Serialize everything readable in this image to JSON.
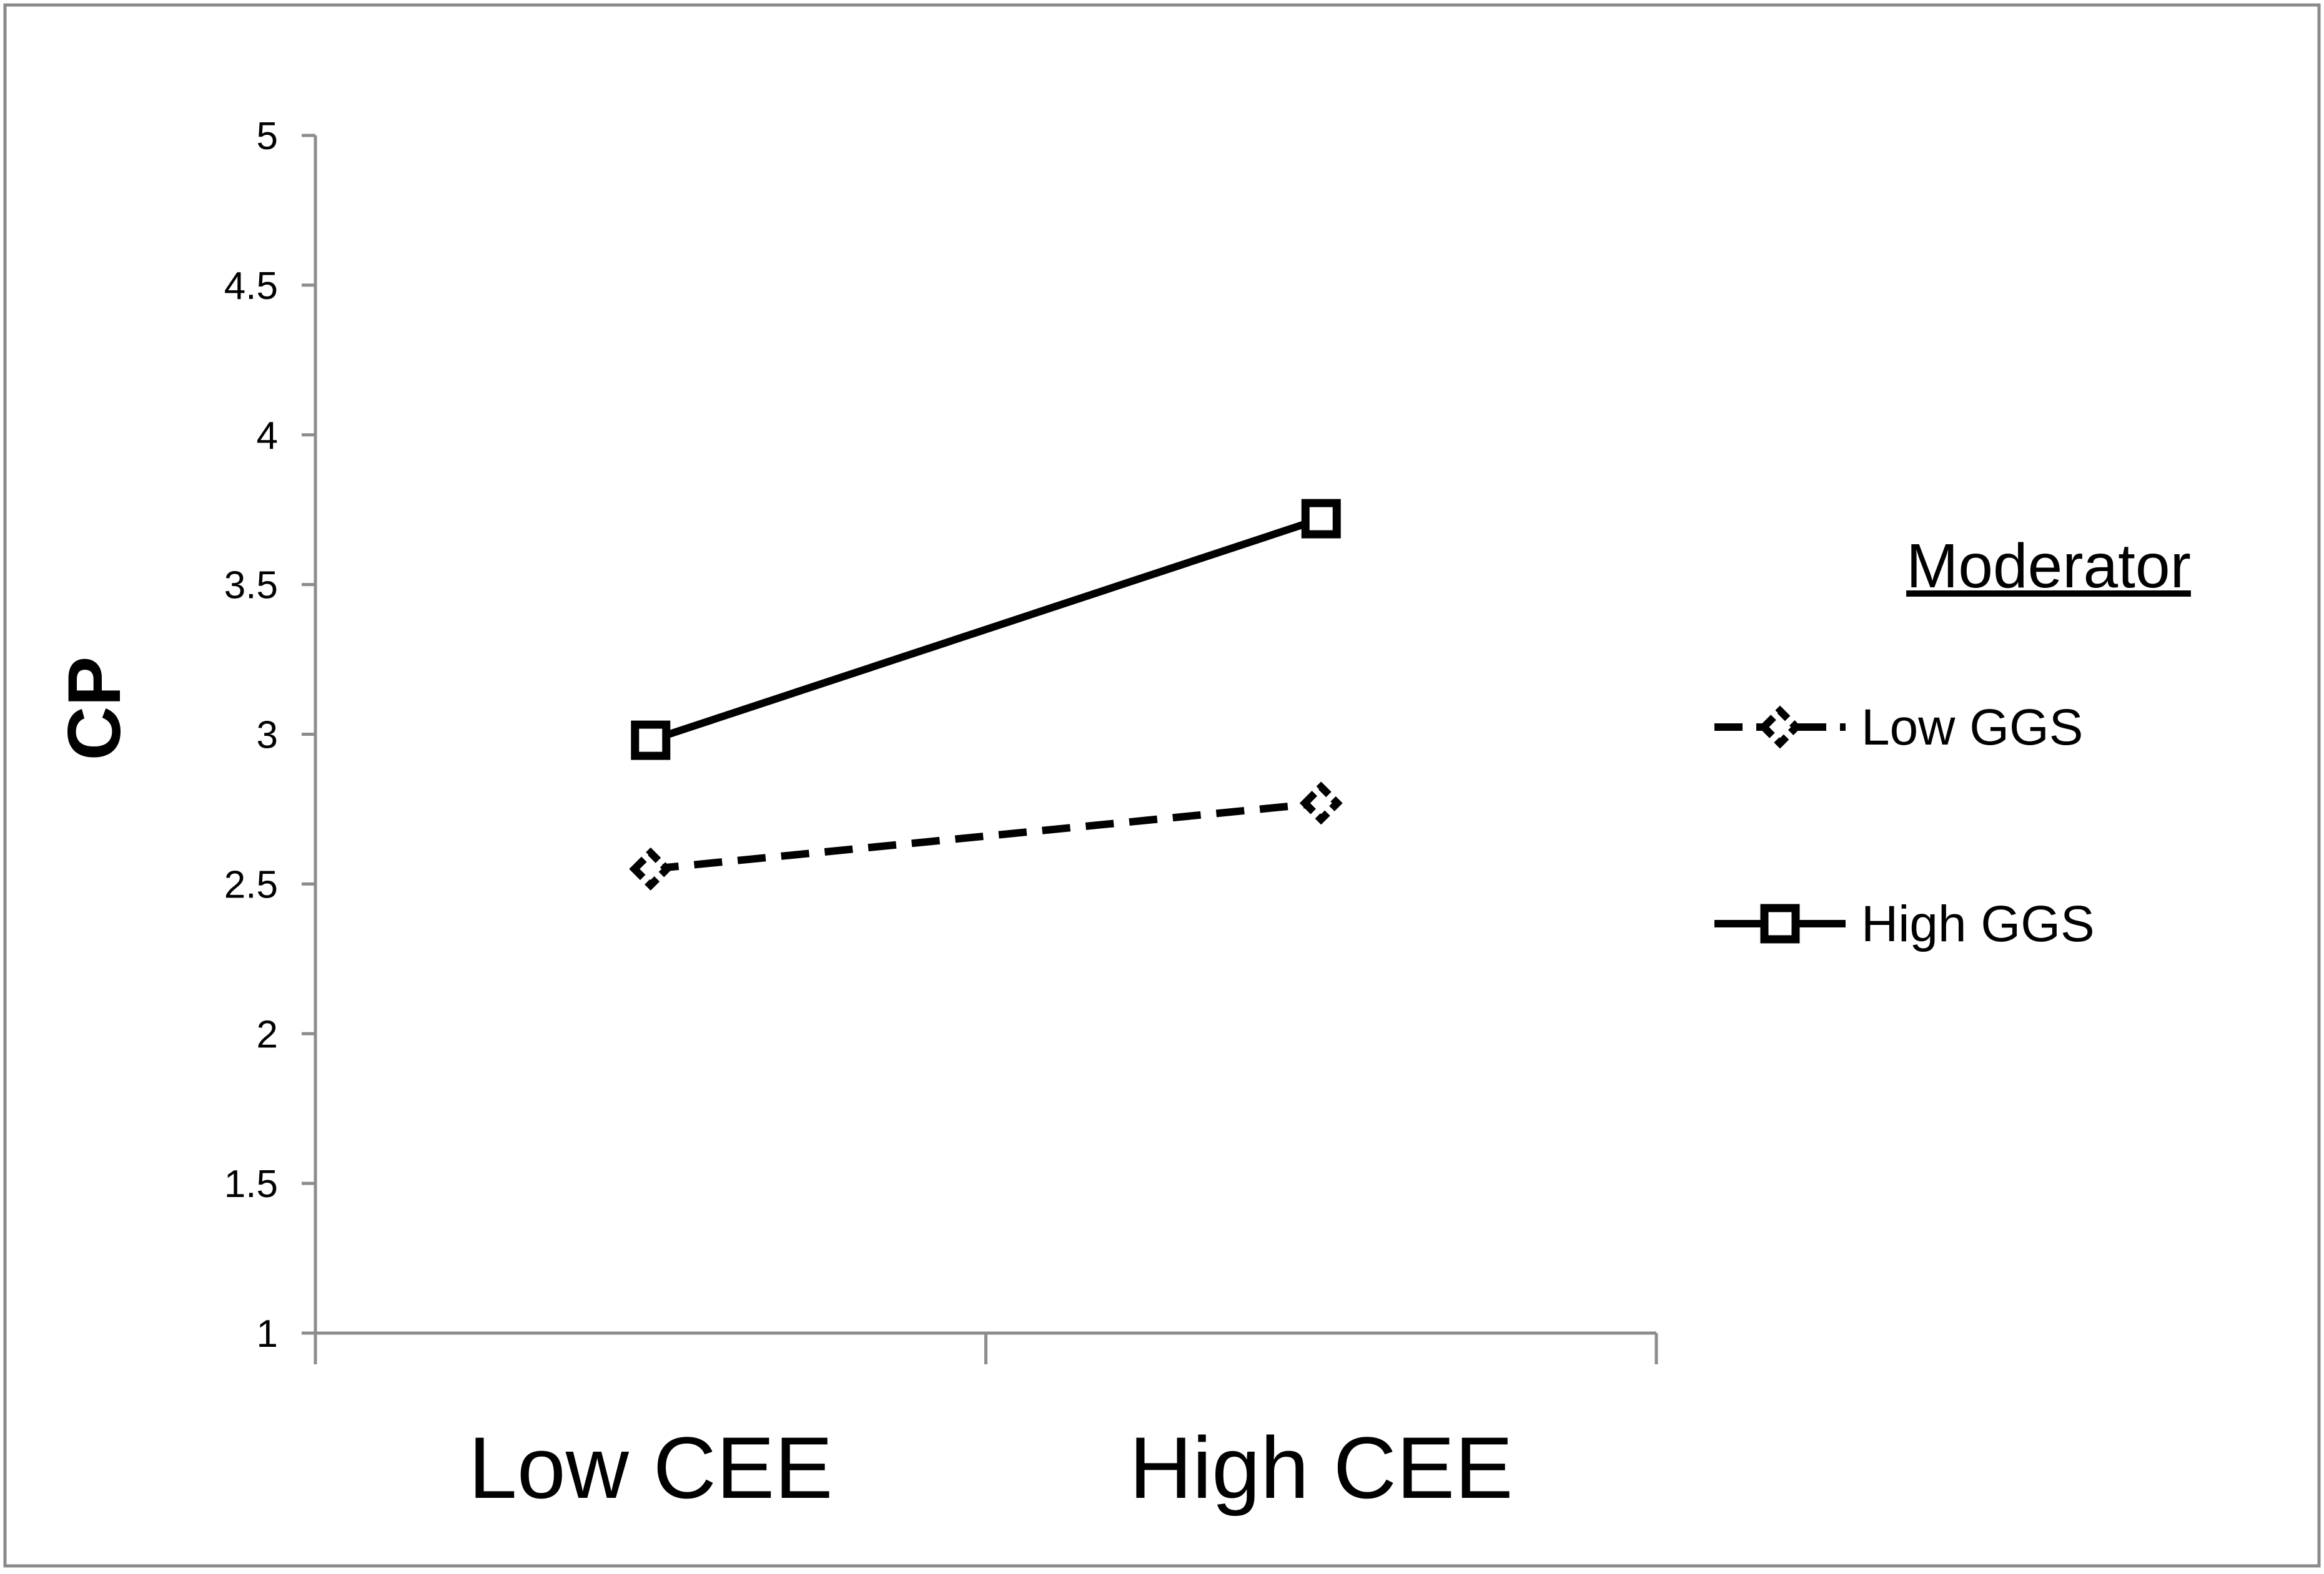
{
  "chart_data": {
    "type": "line",
    "title": "",
    "xlabel": "",
    "ylabel": "CP",
    "categories": [
      "Low CEE",
      "High CEE"
    ],
    "ylim": [
      1,
      5
    ],
    "yticks": [
      "1",
      "1.5",
      "2",
      "2.5",
      "3",
      "3.5",
      "4",
      "4.5",
      "5"
    ],
    "series": [
      {
        "name": "Low GGS",
        "values": [
          2.55,
          2.77
        ],
        "line_style": "dashed",
        "marker": "diamond",
        "color": "#000000"
      },
      {
        "name": "High GGS",
        "values": [
          2.98,
          3.72
        ],
        "line_style": "solid",
        "marker": "square",
        "color": "#000000"
      }
    ],
    "legend": {
      "title": "Moderator",
      "placement": "right"
    },
    "grid": false
  }
}
